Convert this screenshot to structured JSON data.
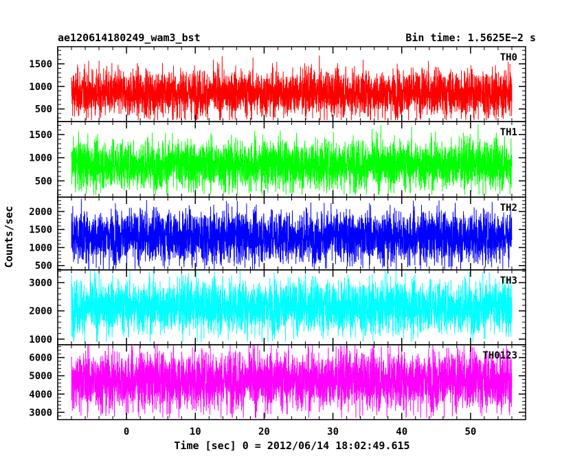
{
  "header": {
    "left_title": "ae120614180249_wam3_bst",
    "right_title": "Bin time: 1.5625E−2 s"
  },
  "axes": {
    "xlabel": "Time [sec] 0 = 2012/06/14 18:02:49.615",
    "ylabel": "Counts/sec"
  },
  "chart_data": [
    {
      "type": "line",
      "series": [
        {
          "name": "TH0",
          "color": "#ff0000",
          "baseline": 850,
          "noise": 260,
          "min": 250,
          "max": 1850
        }
      ],
      "x": {
        "start": -8,
        "end": 56,
        "bin": 0.015625
      },
      "xlim": [
        -10,
        58
      ],
      "ylim": [
        220,
        1880
      ],
      "yticks": [
        500,
        1000,
        1500
      ],
      "xticks": [
        0,
        10,
        20,
        30,
        40,
        50
      ]
    },
    {
      "type": "line",
      "series": [
        {
          "name": "TH1",
          "color": "#00ff00",
          "baseline": 850,
          "noise": 270,
          "min": 200,
          "max": 1800
        }
      ],
      "x": {
        "start": -8,
        "end": 56,
        "bin": 0.015625
      },
      "xlim": [
        -10,
        58
      ],
      "ylim": [
        150,
        1780
      ],
      "yticks": [
        500,
        1000,
        1500
      ],
      "xticks": [
        0,
        10,
        20,
        30,
        40,
        50
      ]
    },
    {
      "type": "line",
      "series": [
        {
          "name": "TH2",
          "color": "#0000ff",
          "baseline": 1300,
          "noise": 370,
          "min": 400,
          "max": 2450
        }
      ],
      "x": {
        "start": -8,
        "end": 56,
        "bin": 0.015625
      },
      "xlim": [
        -10,
        58
      ],
      "ylim": [
        380,
        2400
      ],
      "yticks": [
        500,
        1000,
        1500,
        2000
      ],
      "xticks": [
        0,
        10,
        20,
        30,
        40,
        50
      ]
    },
    {
      "type": "line",
      "series": [
        {
          "name": "TH3",
          "color": "#00ffff",
          "baseline": 2150,
          "noise": 480,
          "min": 900,
          "max": 3450
        }
      ],
      "x": {
        "start": -8,
        "end": 56,
        "bin": 0.015625
      },
      "xlim": [
        -10,
        58
      ],
      "ylim": [
        800,
        3450
      ],
      "yticks": [
        1000,
        2000,
        3000
      ],
      "xticks": [
        0,
        10,
        20,
        30,
        40,
        50
      ]
    },
    {
      "type": "line",
      "series": [
        {
          "name": "TH0123",
          "color": "#ff00ff",
          "baseline": 4750,
          "noise": 820,
          "min": 2700,
          "max": 6800
        }
      ],
      "x": {
        "start": -8,
        "end": 56,
        "bin": 0.015625
      },
      "xlim": [
        -10,
        58
      ],
      "ylim": [
        2600,
        6700
      ],
      "yticks": [
        3000,
        4000,
        5000,
        6000
      ],
      "xticks": [
        0,
        10,
        20,
        30,
        40,
        50
      ]
    }
  ]
}
